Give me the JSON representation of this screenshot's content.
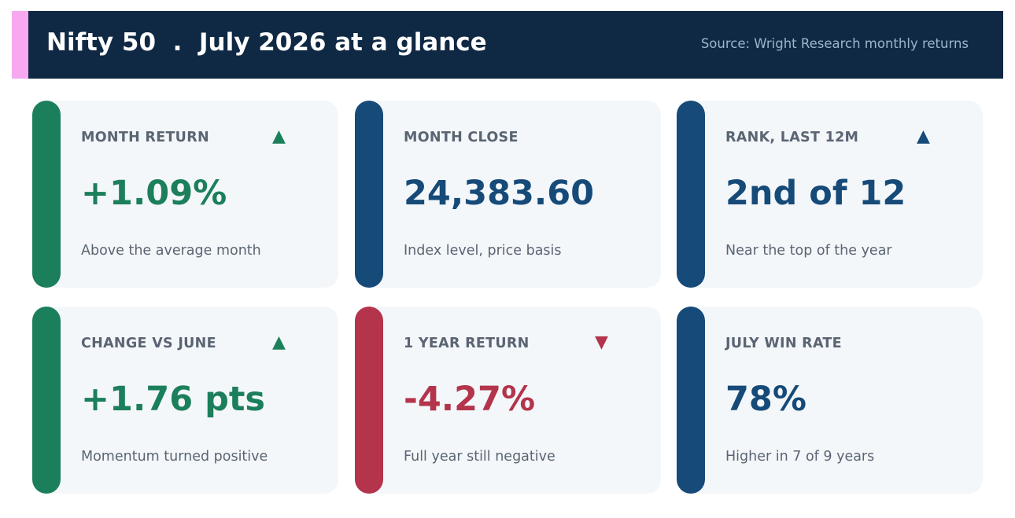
{
  "header": {
    "title": "Nifty 50  .  July 2026 at a glance",
    "source": "Source: Wright Research monthly returns"
  },
  "colors": {
    "header_bg": "#0f2944",
    "header_accent": "#f7a8f0",
    "positive": "#1c7f5c",
    "neutral": "#164a78",
    "negative": "#b3344b",
    "card_bg": "#f3f7fa",
    "muted_text": "#5b6472"
  },
  "cards": [
    {
      "label": "MONTH RETURN",
      "value": "+1.09%",
      "subtext": "Above the average month",
      "tone": "positive",
      "arrow": "▲",
      "arrow_icon": "triangle-up-icon"
    },
    {
      "label": "MONTH CLOSE",
      "value": "24,383.60",
      "subtext": "Index level, price basis",
      "tone": "neutral",
      "arrow": "",
      "arrow_icon": ""
    },
    {
      "label": "RANK, LAST 12M",
      "value": "2nd of 12",
      "subtext": "Near the top of the year",
      "tone": "neutral",
      "arrow": "▲",
      "arrow_icon": "triangle-up-icon"
    },
    {
      "label": "CHANGE VS JUNE",
      "value": "+1.76 pts",
      "subtext": "Momentum turned positive",
      "tone": "positive",
      "arrow": "▲",
      "arrow_icon": "triangle-up-icon"
    },
    {
      "label": "1 YEAR RETURN",
      "value": "-4.27%",
      "subtext": "Full year still negative",
      "tone": "negative",
      "arrow": "▼",
      "arrow_icon": "triangle-down-icon"
    },
    {
      "label": "JULY WIN RATE",
      "value": "78%",
      "subtext": "Higher in 7 of 9 years",
      "tone": "neutral",
      "arrow": "",
      "arrow_icon": ""
    }
  ]
}
